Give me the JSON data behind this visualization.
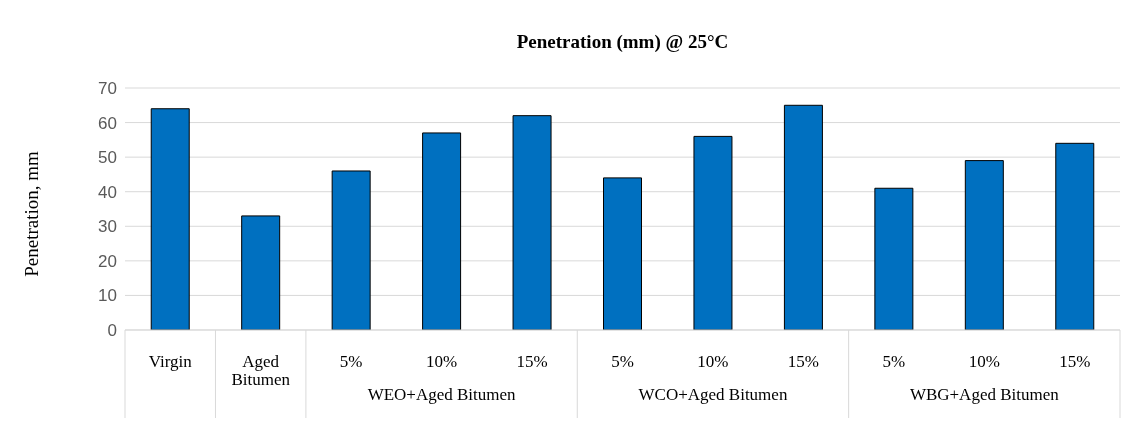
{
  "chart_data": {
    "type": "bar",
    "title": "Penetration (mm) @ 25°C",
    "ylabel": "Penetration, mm",
    "categories": [
      "Virgin",
      "Aged Bitumen",
      "5%",
      "10%",
      "15%",
      "5%",
      "10%",
      "15%",
      "5%",
      "10%",
      "15%"
    ],
    "values": [
      64,
      33,
      46,
      57,
      62,
      44,
      56,
      65,
      41,
      49,
      54
    ],
    "color": "#0070c0",
    "annotations": [
      "WEO+Aged Bitumen",
      "WCO+Aged Bitumen",
      "WBG+Aged Bitumen"
    ],
    "ylim": [
      0,
      70
    ],
    "yticks": [
      0,
      10,
      20,
      30,
      40,
      50,
      60,
      70
    ],
    "grid": "y",
    "legend": false
  }
}
